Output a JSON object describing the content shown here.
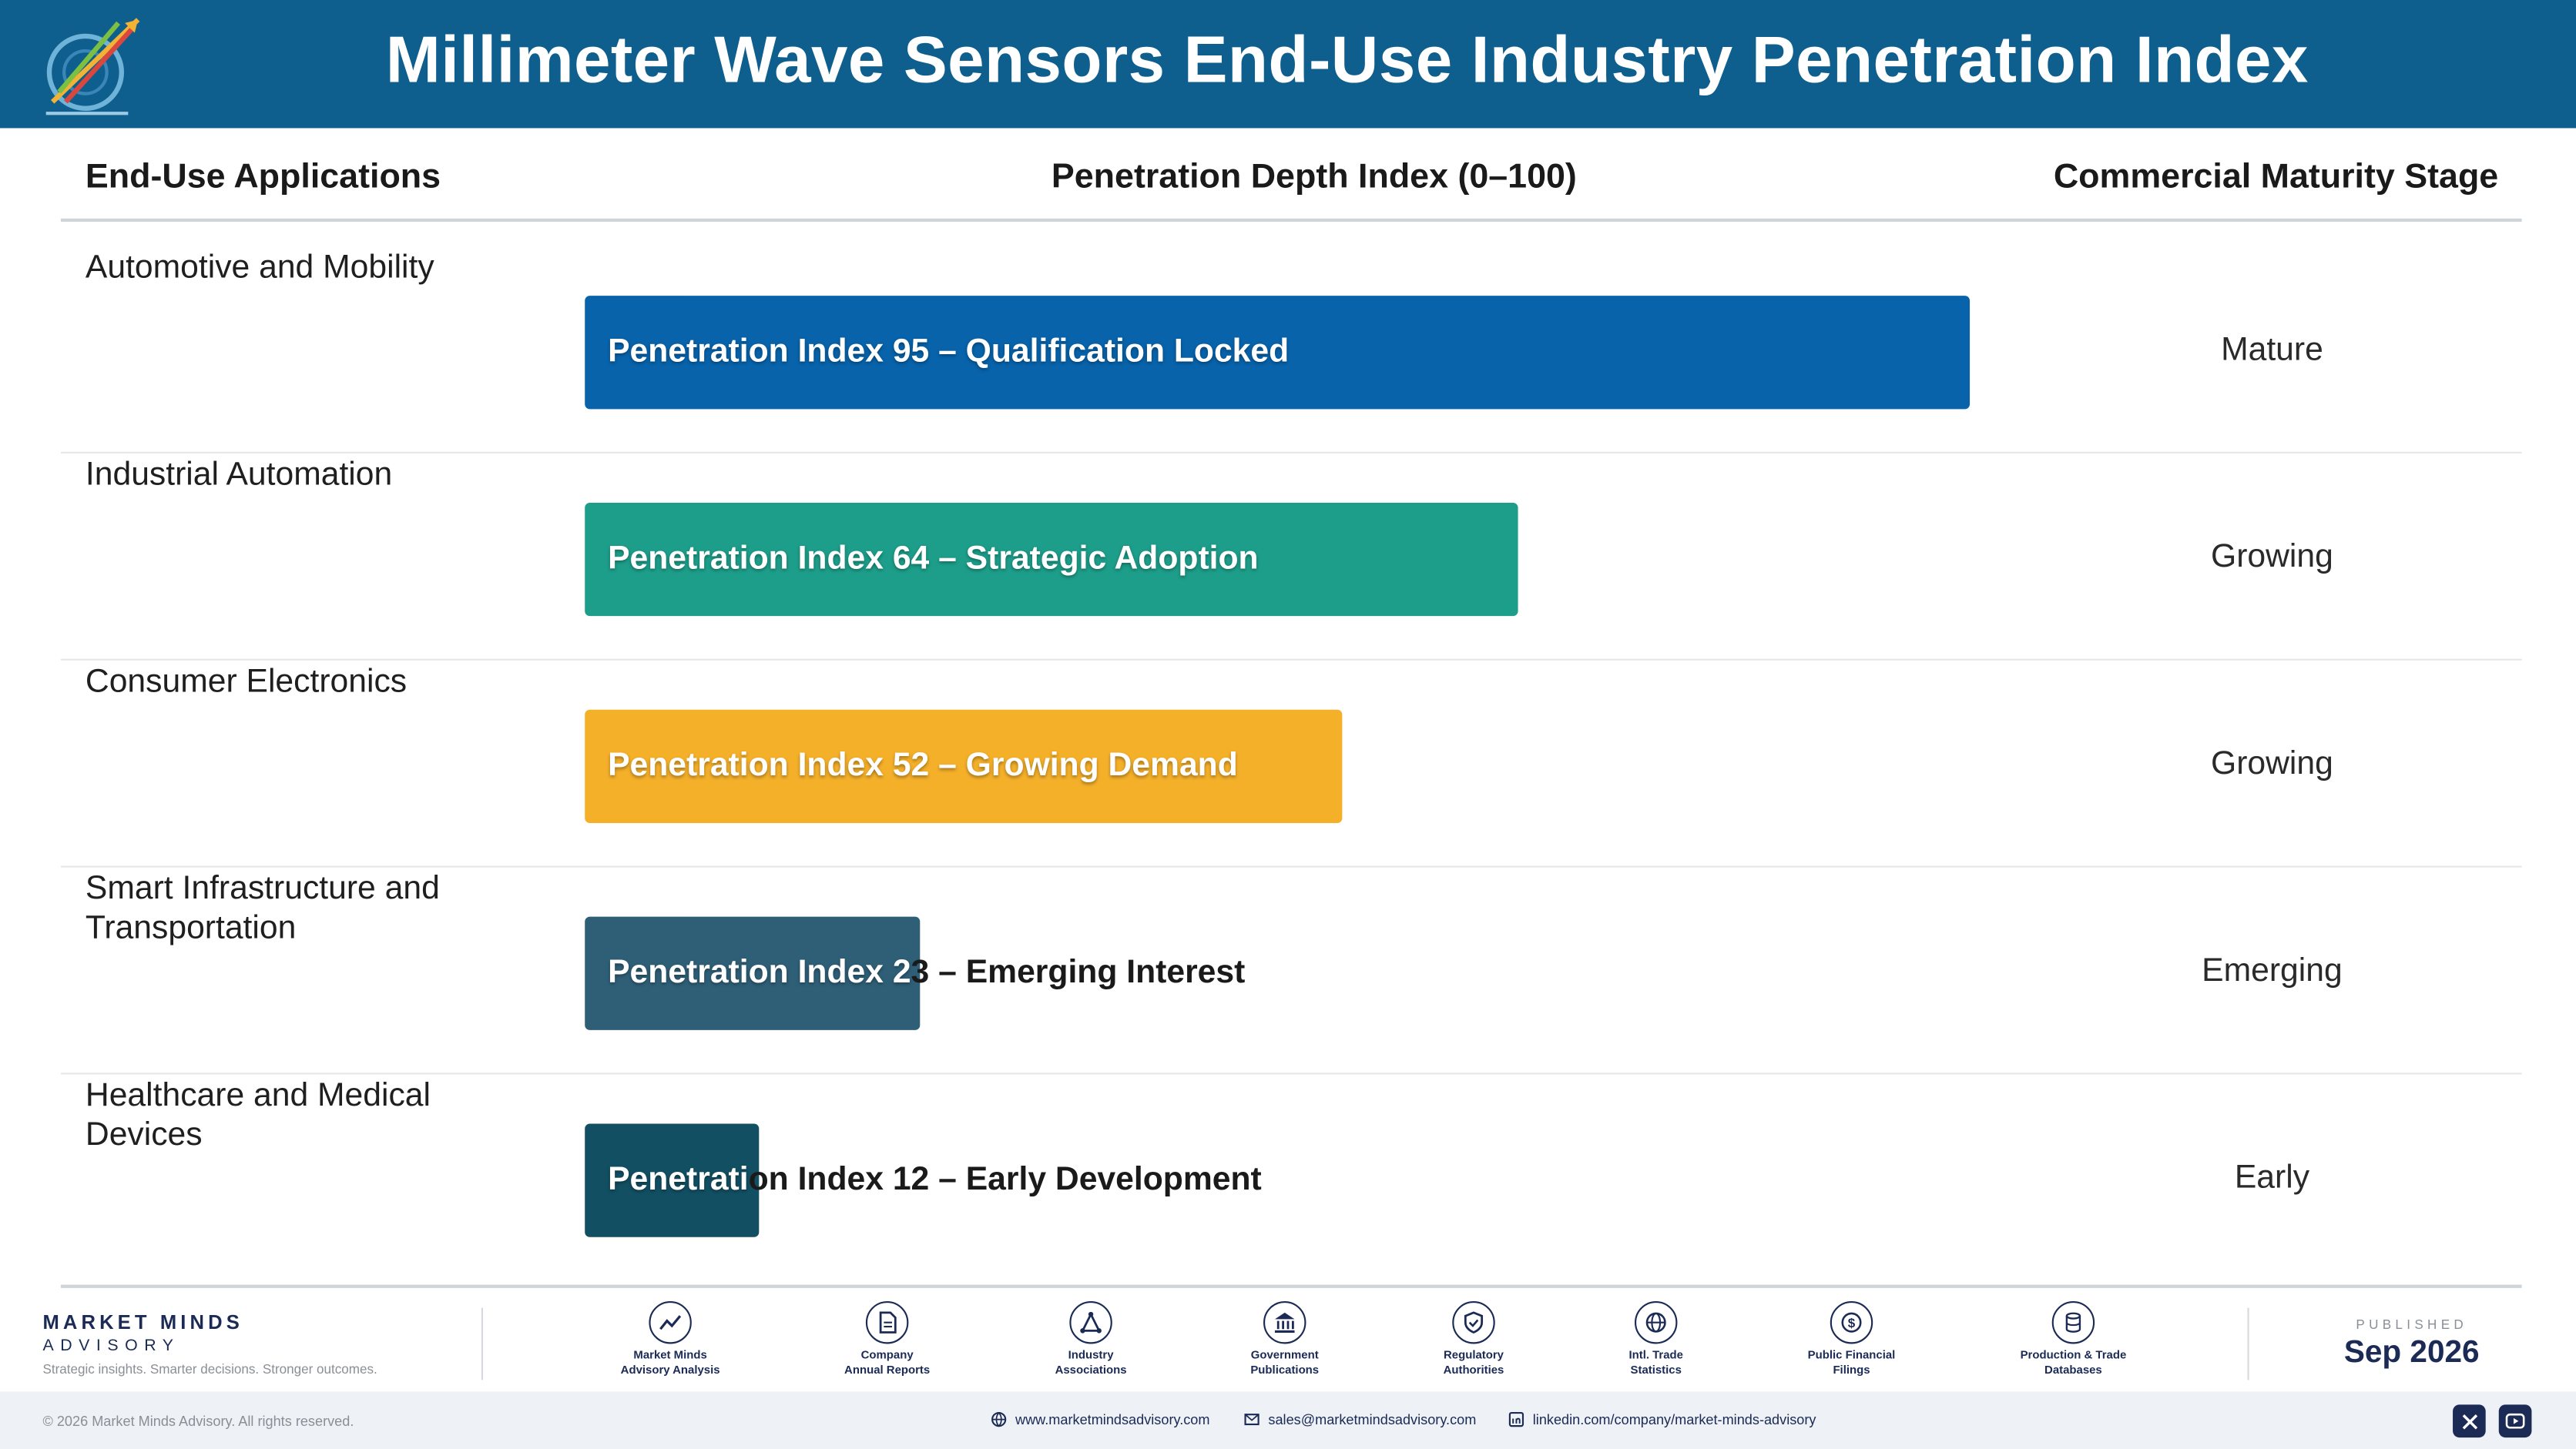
{
  "header": {
    "title": "Millimeter Wave Sensors End-Use Industry Penetration Index",
    "logo_icon": "market-minds-advisory-logo",
    "bg_color": "#0f5f8e"
  },
  "columns": {
    "applications": "End-Use Applications",
    "index": "Penetration Depth Index (0–100)",
    "stage": "Commercial Maturity Stage"
  },
  "chart_data": {
    "type": "bar",
    "orientation": "horizontal",
    "title": "Millimeter Wave Sensors End-Use Industry Penetration Index",
    "xlabel": "Penetration Depth Index (0–100)",
    "ylabel": "End-Use Applications",
    "xlim": [
      0,
      100
    ],
    "grid": false,
    "categories": [
      "Automotive and Mobility",
      "Industrial Automation",
      "Consumer Electronics",
      "Smart Infrastructure and Transportation",
      "Healthcare and Medical Devices"
    ],
    "values": [
      95,
      64,
      52,
      23,
      12
    ],
    "data_labels": [
      "Penetration Index 95 – Qualification Locked",
      "Penetration Index 64 – Strategic Adoption",
      "Penetration Index 52 – Growing Demand",
      "Penetration Index 23 – Emerging Interest",
      "Penetration Index 12 – Early Development"
    ],
    "stages": [
      "Mature",
      "Growing",
      "Growing",
      "Emerging",
      "Early"
    ],
    "colors": [
      "#0863ab",
      "#1d9e8a",
      "#f5b02a",
      "#2f5f77",
      "#124f62"
    ]
  },
  "footer": {
    "brand_name": "MARKET MINDS",
    "brand_sub": "ADVISORY",
    "tagline": "Strategic insights. Smarter decisions. Stronger outcomes.",
    "sources": [
      {
        "icon": "trend-chart-icon",
        "line1": "Market Minds",
        "line2": "Advisory Analysis"
      },
      {
        "icon": "document-icon",
        "line1": "Company",
        "line2": "Annual Reports"
      },
      {
        "icon": "network-icon",
        "line1": "Industry",
        "line2": "Associations"
      },
      {
        "icon": "government-building-icon",
        "line1": "Government",
        "line2": "Publications"
      },
      {
        "icon": "shield-check-icon",
        "line1": "Regulatory",
        "line2": "Authorities"
      },
      {
        "icon": "globe-icon",
        "line1": "Intl. Trade",
        "line2": "Statistics"
      },
      {
        "icon": "dollar-coin-icon",
        "line1": "Public Financial",
        "line2": "Filings"
      },
      {
        "icon": "database-icon",
        "line1": "Production & Trade",
        "line2": "Databases"
      }
    ],
    "published_label": "PUBLISHED",
    "published_date": "Sep 2026",
    "copyright": "© 2026 Market Minds Advisory. All rights reserved.",
    "website": "www.marketmindsadvisory.com",
    "email": "sales@marketmindsadvisory.com",
    "linkedin": "linkedin.com/company/market-minds-advisory",
    "social": [
      "x-icon",
      "youtube-icon"
    ]
  }
}
